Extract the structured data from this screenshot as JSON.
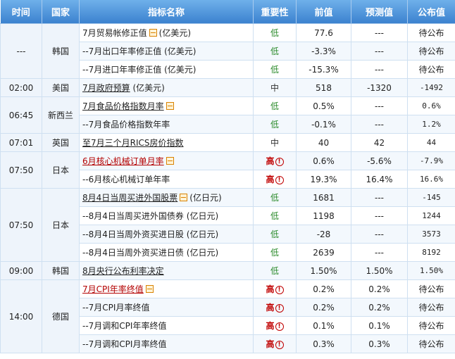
{
  "headers": [
    "时间",
    "国家",
    "指标名称",
    "重要性",
    "前值",
    "预测值",
    "公布值"
  ],
  "groups": [
    {
      "time": "---",
      "country": "韩国",
      "rows": [
        {
          "name": "7月贸易帐修正值",
          "suffix": "(亿美元)",
          "icon": true,
          "underline": false,
          "red": false,
          "importance": "低",
          "prev": "77.6",
          "fcst": "---",
          "actual": "待公布"
        },
        {
          "name": "--7月出口年率修正值",
          "suffix": "(亿美元)",
          "icon": false,
          "underline": false,
          "red": false,
          "importance": "低",
          "prev": "-3.3%",
          "fcst": "---",
          "actual": "待公布"
        },
        {
          "name": "--7月进口年率修正值",
          "suffix": "(亿美元)",
          "icon": false,
          "underline": false,
          "red": false,
          "importance": "低",
          "prev": "-15.3%",
          "fcst": "---",
          "actual": "待公布"
        }
      ]
    },
    {
      "time": "02:00",
      "country": "美国",
      "rows": [
        {
          "name": "7月政府预算",
          "suffix": "(亿美元)",
          "icon": false,
          "underline": true,
          "red": false,
          "importance": "中",
          "prev": "518",
          "fcst": "-1320",
          "actual": "-1492"
        }
      ]
    },
    {
      "time": "06:45",
      "country": "新西兰",
      "rows": [
        {
          "name": "7月食品价格指数月率",
          "suffix": "",
          "icon": true,
          "underline": true,
          "red": false,
          "importance": "低",
          "prev": "0.5%",
          "fcst": "---",
          "actual": "0.6%"
        },
        {
          "name": "--7月食品价格指数年率",
          "suffix": "",
          "icon": false,
          "underline": false,
          "red": false,
          "importance": "低",
          "prev": "-0.1%",
          "fcst": "---",
          "actual": "1.2%"
        }
      ]
    },
    {
      "time": "07:01",
      "country": "英国",
      "rows": [
        {
          "name": "至7月三个月RICS房价指数",
          "suffix": "",
          "icon": false,
          "underline": true,
          "red": false,
          "importance": "中",
          "prev": "40",
          "fcst": "42",
          "actual": "44"
        }
      ]
    },
    {
      "time": "07:50",
      "country": "日本",
      "rows": [
        {
          "name": "6月核心机械订单月率",
          "suffix": "",
          "icon": true,
          "underline": true,
          "red": true,
          "importance": "高",
          "prev": "0.6%",
          "fcst": "-5.6%",
          "actual": "-7.9%"
        },
        {
          "name": "--6月核心机械订单年率",
          "suffix": "",
          "icon": false,
          "underline": false,
          "red": false,
          "importance": "高",
          "prev": "19.3%",
          "fcst": "16.4%",
          "actual": "16.6%"
        }
      ]
    },
    {
      "time": "07:50",
      "country": "日本",
      "rows": [
        {
          "name": "8月4日当周买进外国股票",
          "suffix": "(亿日元)",
          "icon": true,
          "underline": true,
          "red": false,
          "importance": "低",
          "prev": "1681",
          "fcst": "---",
          "actual": "-145"
        },
        {
          "name": "--8月4日当周买进外国债券",
          "suffix": "(亿日元)",
          "icon": false,
          "underline": false,
          "red": false,
          "importance": "低",
          "prev": "1198",
          "fcst": "---",
          "actual": "1244"
        },
        {
          "name": "--8月4日当周外资买进日股",
          "suffix": "(亿日元)",
          "icon": false,
          "underline": false,
          "red": false,
          "importance": "低",
          "prev": "-28",
          "fcst": "---",
          "actual": "3573"
        },
        {
          "name": "--8月4日当周外资买进日债",
          "suffix": "(亿日元)",
          "icon": false,
          "underline": false,
          "red": false,
          "importance": "低",
          "prev": "2639",
          "fcst": "---",
          "actual": "8192"
        }
      ]
    },
    {
      "time": "09:00",
      "country": "韩国",
      "rows": [
        {
          "name": "8月央行公布利率决定",
          "suffix": "",
          "icon": false,
          "underline": true,
          "red": false,
          "importance": "低",
          "prev": "1.50%",
          "fcst": "1.50%",
          "actual": "1.50%"
        }
      ]
    },
    {
      "time": "14:00",
      "country": "德国",
      "rows": [
        {
          "name": "7月CPI年率终值",
          "suffix": "",
          "icon": true,
          "underline": true,
          "red": true,
          "importance": "高",
          "prev": "0.2%",
          "fcst": "0.2%",
          "actual": "待公布"
        },
        {
          "name": "--7月CPI月率终值",
          "suffix": "",
          "icon": false,
          "underline": false,
          "red": false,
          "importance": "高",
          "prev": "0.2%",
          "fcst": "0.2%",
          "actual": "待公布"
        },
        {
          "name": "--7月调和CPI年率终值",
          "suffix": "",
          "icon": false,
          "underline": false,
          "red": false,
          "importance": "高",
          "prev": "0.1%",
          "fcst": "0.1%",
          "actual": "待公布"
        },
        {
          "name": "--7月调和CPI月率终值",
          "suffix": "",
          "icon": false,
          "underline": false,
          "red": false,
          "importance": "高",
          "prev": "0.3%",
          "fcst": "0.3%",
          "actual": "待公布"
        }
      ]
    }
  ]
}
